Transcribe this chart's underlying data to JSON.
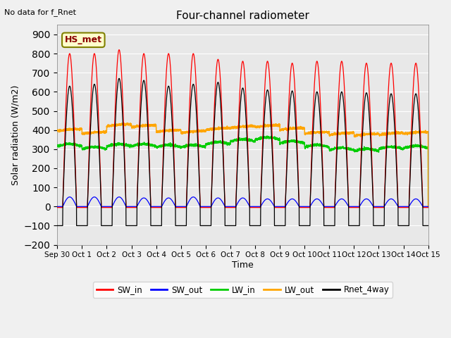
{
  "title": "Four-channel radiometer",
  "top_left_text": "No data for f_Rnet",
  "ylabel": "Solar radiation (W/m2)",
  "xlabel": "Time",
  "annotation_box": "HS_met",
  "ylim": [
    -200,
    950
  ],
  "yticks": [
    -200,
    -100,
    0,
    100,
    200,
    300,
    400,
    500,
    600,
    700,
    800,
    900
  ],
  "background_color": "#e8e8e8",
  "xticklabels": [
    "Sep 30",
    "Oct 1",
    "Oct 2",
    "Oct 3",
    "Oct 4",
    "Oct 5",
    "Oct 6",
    "Oct 7",
    "Oct 8",
    "Oct 9",
    "Oct 10",
    "Oct 11",
    "Oct 12",
    "Oct 13",
    "Oct 14",
    "Oct 15"
  ],
  "legend_entries": [
    "SW_in",
    "SW_out",
    "LW_in",
    "LW_out",
    "Rnet_4way"
  ],
  "legend_colors": [
    "#ff0000",
    "#0000ff",
    "#00cc00",
    "#ffa500",
    "#000000"
  ],
  "n_days": 15,
  "sw_in_peaks": [
    800,
    800,
    820,
    800,
    800,
    800,
    770,
    760,
    760,
    750,
    760,
    760,
    750,
    750,
    750
  ],
  "sw_out_peaks": [
    50,
    50,
    50,
    45,
    45,
    50,
    45,
    45,
    40,
    40,
    40,
    40,
    40,
    40,
    40
  ],
  "rnet_peaks": [
    630,
    640,
    670,
    660,
    630,
    640,
    650,
    620,
    610,
    605,
    600,
    600,
    595,
    590,
    590
  ],
  "lw_in_base": [
    315,
    300,
    315,
    315,
    310,
    310,
    325,
    340,
    350,
    330,
    310,
    295,
    290,
    300,
    305
  ],
  "lw_out_base": [
    395,
    380,
    420,
    415,
    390,
    385,
    400,
    410,
    415,
    400,
    380,
    375,
    370,
    375,
    380
  ],
  "rnet_night": -100,
  "sw_in_color": "#ff0000",
  "sw_out_color": "#0000ff",
  "lw_in_color": "#00cc00",
  "lw_out_color": "#ffa500",
  "rnet_color": "#000000"
}
